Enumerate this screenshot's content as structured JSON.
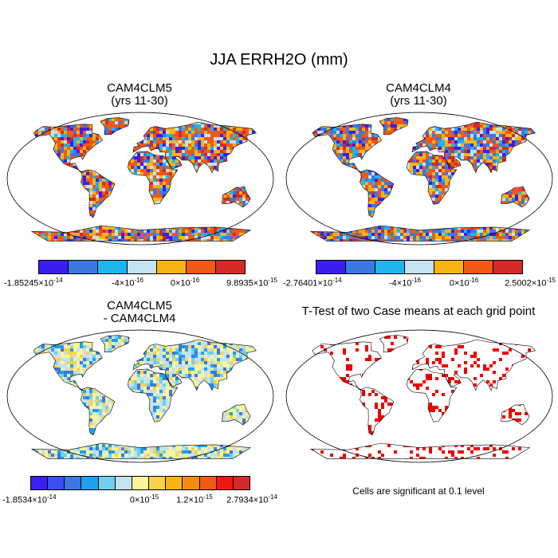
{
  "main_title": "JJA ERRH2O (mm)",
  "panels": {
    "p1": {
      "title_line1": "CAM4CLM5",
      "title_line2": "(yrs 11-30)"
    },
    "p2": {
      "title_line1": "CAM4CLM4",
      "title_line2": "(yrs 11-30)"
    },
    "p3": {
      "title_line1": "CAM4CLM5",
      "title_line2": "- CAM4CLM4"
    },
    "p4": {
      "title_line1": "T-Test of two Case means at each grid point",
      "footer": "Cells are significant at 0.1 level"
    }
  },
  "colorbars": {
    "cb1": {
      "colors": [
        "#3a1ff0",
        "#3c78e0",
        "#1fb4ee",
        "#c4e2f0",
        "#f8b414",
        "#f05a14",
        "#d42a2a"
      ],
      "labels": [
        {
          "base": "-1.85245×10",
          "exp": "-14"
        },
        {
          "base": "-4×10",
          "exp": "-16"
        },
        {
          "base": "0×10",
          "exp": "-16"
        },
        {
          "base": "9.8935×10",
          "exp": "-15"
        }
      ]
    },
    "cb2": {
      "colors": [
        "#3a1ff0",
        "#3c78e0",
        "#1fb4ee",
        "#c4e2f0",
        "#f8b414",
        "#f05a14",
        "#d42a2a"
      ],
      "labels": [
        {
          "base": "-2.76401×10",
          "exp": "-14"
        },
        {
          "base": "-4×10",
          "exp": "-16"
        },
        {
          "base": "0×10",
          "exp": "-16"
        },
        {
          "base": "2.5002×10",
          "exp": "-15"
        }
      ]
    },
    "cb3": {
      "colors": [
        "#3a1ff0",
        "#3a4ff0",
        "#3c78e0",
        "#1fa0ee",
        "#6fd0f0",
        "#c4e2f0",
        "#fbf59a",
        "#f8d24a",
        "#f8b414",
        "#f58a10",
        "#f05a14",
        "#ee1a10",
        "#d42a2a"
      ],
      "labels": [
        {
          "base": "-1.8534×10",
          "exp": "-14"
        },
        {
          "base": "0×10",
          "exp": "-15"
        },
        {
          "base": "1.2×10",
          "exp": "-15"
        },
        {
          "base": "2.7934×10",
          "exp": "-14"
        }
      ]
    }
  }
}
